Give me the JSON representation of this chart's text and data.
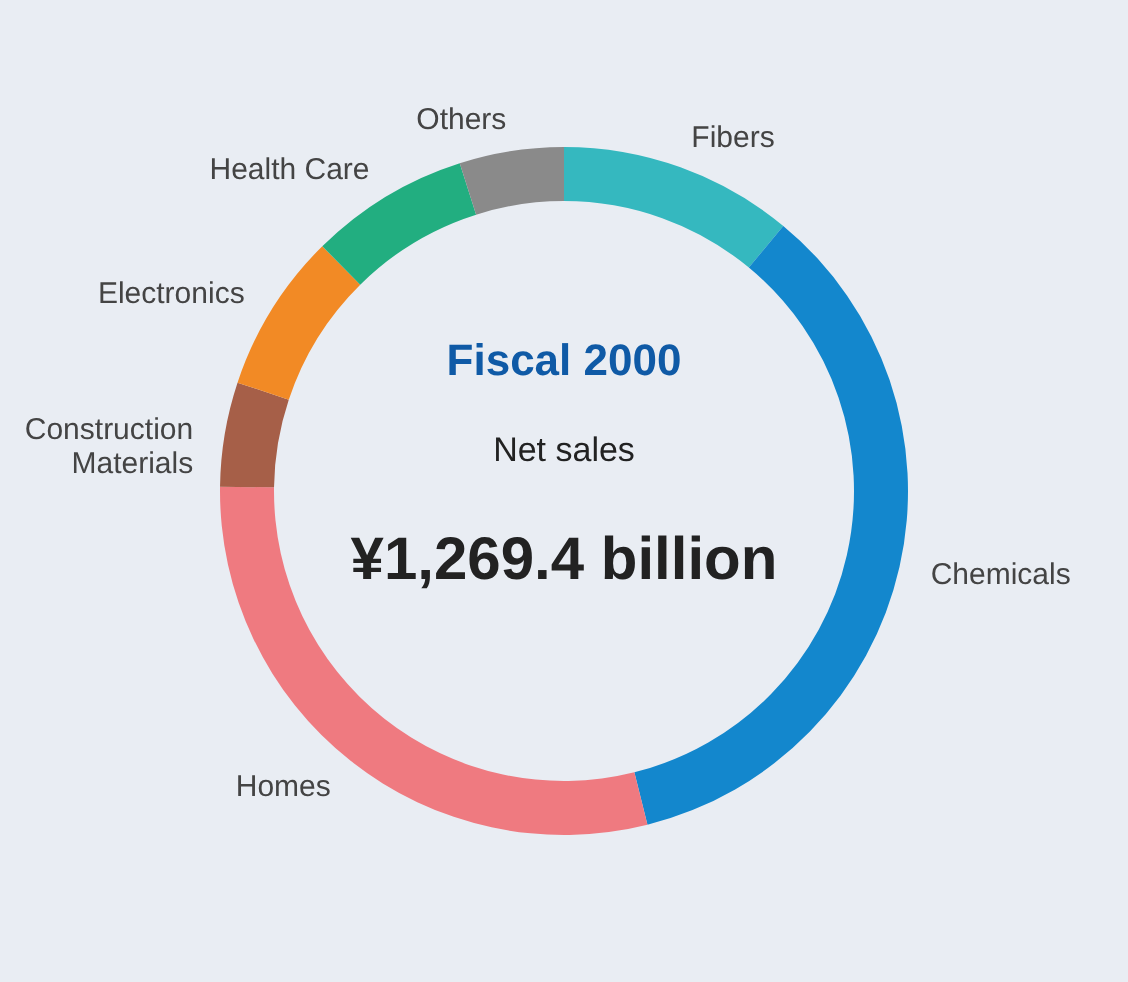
{
  "chart_data": {
    "type": "donut",
    "title": "Fiscal 2000",
    "subtitle": "Net sales",
    "annotations": [
      "¥1,269.4 billion"
    ],
    "categories": [
      "Fibers",
      "Chemicals",
      "Homes",
      "Construction Materials",
      "Electronics",
      "Health Care",
      "Others"
    ],
    "values": [
      11,
      35.1,
      29.1,
      4.9,
      7.5,
      7.5,
      4.9
    ],
    "colors": [
      "#35b8bf",
      "#1387cd",
      "#ef7a80",
      "#a65f48",
      "#f28a25",
      "#22ae80",
      "#8a8a8a"
    ]
  }
}
